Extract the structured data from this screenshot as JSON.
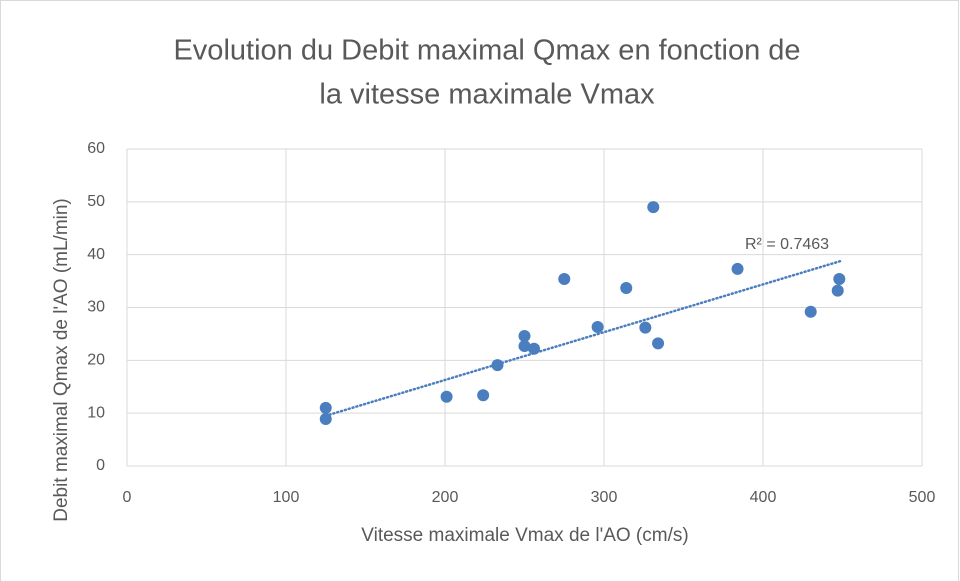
{
  "chart_data": {
    "type": "scatter",
    "title": [
      "Evolution du Debit maximal Qmax en fonction de",
      "la vitesse maximale Vmax"
    ],
    "x_label": "Vitesse maximale Vmax de l'AO (cm/s)",
    "y_label": "Debit maximal Qmax de l'AO (mL/min)",
    "annotation": "R² = 0.7463",
    "color": "#4a7ebf",
    "x": [
      125,
      125,
      201,
      224,
      233,
      250,
      250,
      256,
      275,
      296,
      314,
      331,
      326,
      334,
      384,
      430,
      447,
      448
    ],
    "values": [
      11,
      8.9,
      13.1,
      13.4,
      19.1,
      24.6,
      22.7,
      22.2,
      35.4,
      26.3,
      33.7,
      49,
      26.2,
      23.2,
      37.3,
      29.2,
      33.2,
      35.4
    ],
    "trendline": {
      "x": [
        125,
        450
      ],
      "y": [
        9.5,
        38.9
      ]
    },
    "xlim": [
      0,
      500
    ],
    "xticks": [
      0,
      100,
      200,
      300,
      400,
      500
    ],
    "ylim": [
      0,
      60
    ],
    "yticks": [
      0,
      10,
      20,
      30,
      40,
      50,
      60
    ],
    "grid": true
  }
}
